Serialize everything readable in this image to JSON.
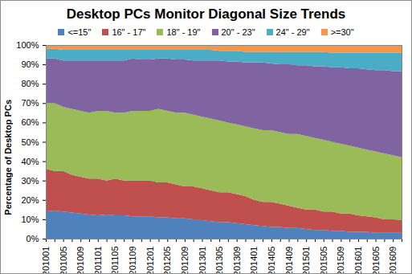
{
  "chart_data": {
    "type": "area",
    "title": "Desktop PCs Monitor Diagonal Size Trends",
    "ylabel": "Percentage of Desktop PCs",
    "stacked": true,
    "grid": true,
    "legend": "top",
    "x": [
      "201001",
      null,
      "201005",
      null,
      "201009",
      null,
      "201101",
      null,
      "201105",
      null,
      "201109",
      null,
      "201201",
      null,
      "201205",
      null,
      "201209",
      null,
      "201301",
      null,
      "201305",
      null,
      "201309",
      null,
      "201401",
      null,
      "201405",
      null,
      "201409",
      null,
      "201501",
      null,
      "201505",
      null,
      "201509",
      null,
      "201601",
      null,
      "201605",
      null,
      "201609",
      null
    ],
    "ylim": [
      0,
      100
    ],
    "yticks": [
      {
        "value": 0,
        "label": "0%"
      },
      {
        "value": 10,
        "label": "10%"
      },
      {
        "value": 20,
        "label": "20%"
      },
      {
        "value": 30,
        "label": "30%"
      },
      {
        "value": 40,
        "label": "40%"
      },
      {
        "value": 50,
        "label": "50%"
      },
      {
        "value": 60,
        "label": "60%"
      },
      {
        "value": 70,
        "label": "70%"
      },
      {
        "value": 80,
        "label": "80%"
      },
      {
        "value": 90,
        "label": "90%"
      },
      {
        "value": 100,
        "label": "100%"
      }
    ],
    "series": [
      {
        "name": "<=15\"",
        "color": "#4f81bd",
        "values": [
          14,
          14.5,
          14,
          13.5,
          13,
          12.5,
          12,
          12.5,
          12,
          12,
          11.5,
          11.5,
          11.5,
          11,
          11,
          10.5,
          10.5,
          10,
          9.5,
          9,
          8.5,
          8.5,
          8,
          7.5,
          7,
          6.5,
          6,
          6,
          5.5,
          5.5,
          5,
          4.5,
          4.5,
          4,
          4,
          3.5,
          3.5,
          3.5,
          3,
          3,
          3,
          3
        ]
      },
      {
        "name": "16\" - 17\"",
        "color": "#c0504d",
        "values": [
          22,
          20.5,
          21,
          19.5,
          19,
          18.5,
          19,
          17.5,
          19,
          18,
          18.5,
          18.5,
          18.5,
          18,
          18,
          17.5,
          16.5,
          17,
          16.5,
          16,
          15.5,
          15.5,
          15,
          14.5,
          13,
          12.5,
          13,
          12,
          11.5,
          10.5,
          10,
          10.5,
          9.5,
          10,
          9,
          9.5,
          8.5,
          8,
          8,
          7,
          7,
          6.5
        ]
      },
      {
        "name": "18\" - 19\"",
        "color": "#9bbb59",
        "values": [
          34,
          35,
          33,
          34,
          34,
          34,
          35,
          36,
          34,
          35,
          36,
          36,
          36,
          38,
          37,
          37,
          38,
          37,
          37,
          37,
          37,
          36,
          36,
          36,
          37,
          37,
          37,
          37,
          37,
          38,
          38,
          37,
          37,
          36,
          36,
          35,
          35,
          34.5,
          34,
          34,
          33,
          32.5
        ]
      },
      {
        "name": "20\" - 23\"",
        "color": "#8064a2",
        "values": [
          23,
          23,
          24,
          25,
          26,
          27,
          26,
          26,
          27,
          27,
          27,
          26.5,
          26.5,
          26,
          27,
          27.5,
          27.5,
          28,
          29,
          30,
          31,
          31.5,
          32.5,
          33,
          34,
          35,
          34.5,
          35,
          36,
          35.5,
          36.5,
          37,
          38,
          38.5,
          39.5,
          40,
          41,
          41.5,
          42,
          43,
          43.5,
          44.5
        ]
      },
      {
        "name": "24\" - 29\"",
        "color": "#4bacc6",
        "values": [
          5,
          5,
          5.5,
          5.5,
          5.5,
          5.5,
          5.5,
          5.5,
          5.5,
          5.5,
          4.5,
          5,
          5,
          4.5,
          4.5,
          5,
          5,
          5.5,
          5.5,
          5.5,
          5,
          5.5,
          5.5,
          5.5,
          5.5,
          5.5,
          6,
          6.5,
          6.5,
          7,
          7,
          7.5,
          7.5,
          7.5,
          7.5,
          8,
          8,
          8.5,
          9,
          9,
          9.5,
          9.5
        ]
      },
      {
        "name": ">=30\"",
        "color": "#f79646",
        "values": [
          2,
          2,
          2.5,
          2.5,
          2.5,
          2.5,
          2.5,
          2.5,
          2.5,
          2.5,
          2.5,
          2.5,
          2.5,
          2.5,
          2.5,
          2.5,
          2.5,
          2.5,
          2.5,
          2.5,
          3,
          3,
          3,
          3.5,
          3.5,
          3.5,
          3.5,
          3.5,
          3.5,
          3.5,
          3.5,
          3.5,
          3.5,
          4,
          4,
          4,
          4,
          4,
          4,
          4,
          4,
          4
        ]
      }
    ]
  }
}
